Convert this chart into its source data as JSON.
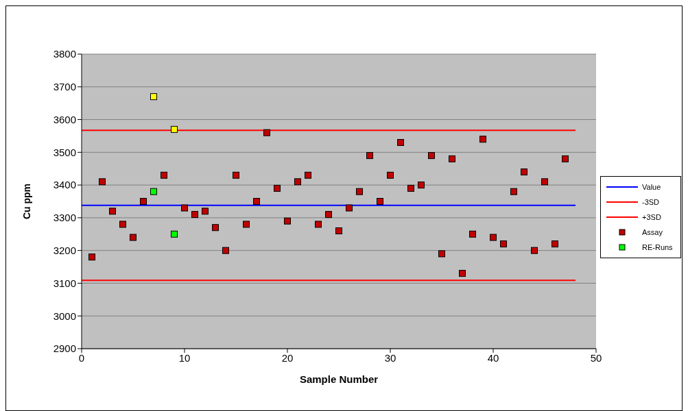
{
  "chart_data": {
    "type": "scatter",
    "xlabel": "Sample Number",
    "ylabel": "Cu ppm",
    "xlim": [
      0,
      50
    ],
    "xticks": [
      0,
      10,
      20,
      30,
      40,
      50
    ],
    "ylim": [
      2900,
      3800
    ],
    "yticks": [
      2900,
      3000,
      3100,
      3200,
      3300,
      3400,
      3500,
      3600,
      3700,
      3800
    ],
    "grid": "y",
    "legend": "right",
    "series": [
      {
        "name": "Value",
        "type": "line",
        "marker": "none",
        "color": "#0000ff",
        "x": [
          0,
          48
        ],
        "values": [
          3338,
          3338
        ]
      },
      {
        "name": "-3SD",
        "type": "line",
        "marker": "none",
        "color": "#ff0000",
        "x": [
          0,
          48
        ],
        "values": [
          3109,
          3109
        ]
      },
      {
        "name": "+3SD",
        "type": "line",
        "marker": "none",
        "color": "#ff0000",
        "x": [
          0,
          48
        ],
        "values": [
          3567,
          3567
        ]
      },
      {
        "name": "Assay",
        "marker": "square",
        "color": "#c00000",
        "x": [
          1,
          2,
          3,
          4,
          5,
          6,
          8,
          10,
          11,
          12,
          13,
          14,
          15,
          16,
          17,
          18,
          19,
          20,
          21,
          22,
          23,
          24,
          25,
          26,
          27,
          28,
          29,
          30,
          31,
          32,
          33,
          34,
          35,
          36,
          37,
          38,
          39,
          40,
          41,
          42,
          43,
          44,
          45,
          46,
          47
        ],
        "values": [
          3180,
          3410,
          3320,
          3280,
          3240,
          3350,
          3430,
          3330,
          3310,
          3320,
          3270,
          3200,
          3430,
          3280,
          3350,
          3560,
          3390,
          3290,
          3410,
          3430,
          3280,
          3310,
          3260,
          3330,
          3380,
          3490,
          3350,
          3430,
          3530,
          3390,
          3400,
          3490,
          3190,
          3480,
          3130,
          3250,
          3540,
          3240,
          3220,
          3380,
          3440,
          3200,
          3410,
          3220,
          3480
        ]
      },
      {
        "name": "RE-Runs",
        "marker": "square",
        "color": "#00ff00",
        "x": [
          7,
          9
        ],
        "values": [
          3380,
          3250
        ]
      },
      {
        "marker": "square",
        "color": "#ffff00",
        "x": [
          7,
          9
        ],
        "values": [
          3670,
          3570
        ]
      }
    ]
  }
}
